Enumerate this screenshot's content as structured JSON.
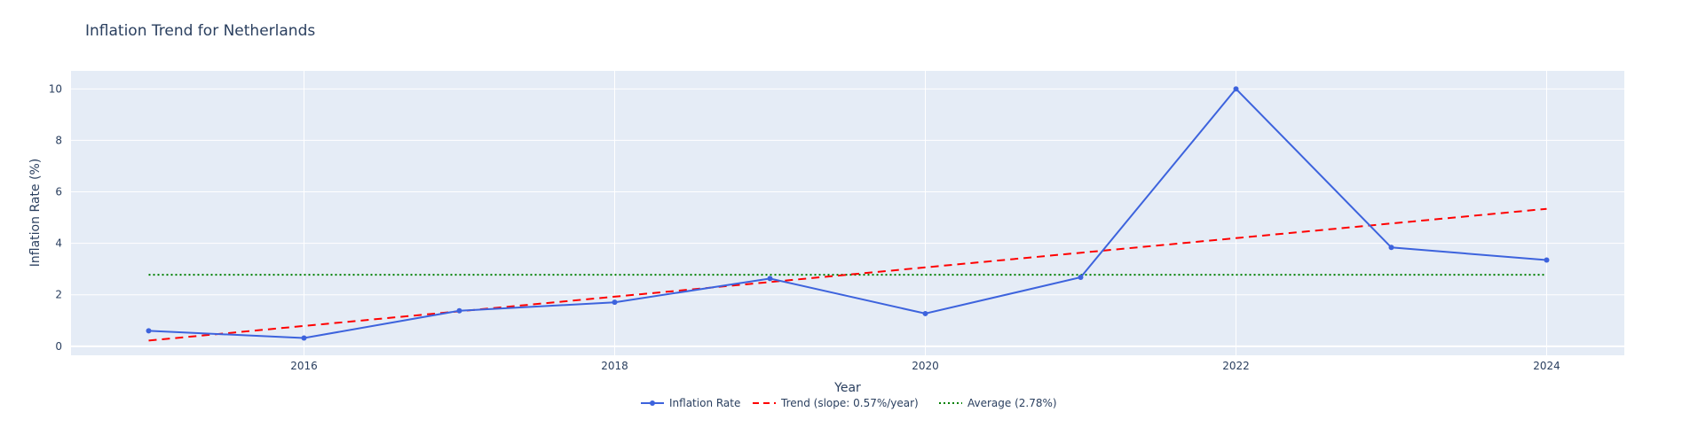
{
  "chart_data": {
    "type": "line",
    "title": "Inflation Trend for Netherlands",
    "xlabel": "Year",
    "ylabel": "Inflation Rate (%)",
    "xlim": [
      2014.5,
      2024.5
    ],
    "ylim": [
      -0.35,
      10.7
    ],
    "x_ticks": [
      2016,
      2018,
      2020,
      2022,
      2024
    ],
    "y_ticks": [
      0,
      2,
      4,
      6,
      8,
      10
    ],
    "grid": true,
    "legend_position": "bottom-center",
    "series": [
      {
        "name": "Inflation Rate",
        "kind": "line+markers",
        "color": "#3d63dd",
        "x": [
          2015,
          2016,
          2017,
          2018,
          2019,
          2020,
          2021,
          2022,
          2023,
          2024
        ],
        "y": [
          0.6,
          0.32,
          1.38,
          1.71,
          2.63,
          1.27,
          2.68,
          10.0,
          3.84,
          3.35
        ]
      },
      {
        "name": "Trend (slope: 0.57%/year)",
        "kind": "dash",
        "color": "#ff0000",
        "x": [
          2015,
          2024
        ],
        "y": [
          0.22,
          5.34
        ]
      },
      {
        "name": "Average (2.78%)",
        "kind": "dot",
        "color": "#008000",
        "x": [
          2015,
          2024
        ],
        "y": [
          2.78,
          2.78
        ]
      }
    ]
  }
}
